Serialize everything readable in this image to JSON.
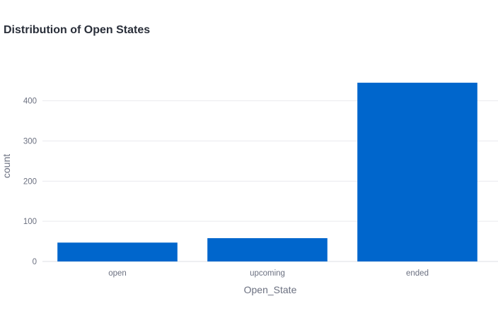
{
  "chart_data": {
    "type": "bar",
    "title": "Distribution of Open States",
    "xlabel": "Open_State",
    "ylabel": "count",
    "categories": [
      "open",
      "upcoming",
      "ended"
    ],
    "values": [
      47,
      58,
      445
    ],
    "ylim": [
      0,
      475
    ],
    "yticks": [
      0,
      100,
      200,
      300,
      400
    ],
    "grid": true,
    "legend": "none",
    "bar_color": "#0066cc",
    "grid_color": "#e9eaee"
  }
}
